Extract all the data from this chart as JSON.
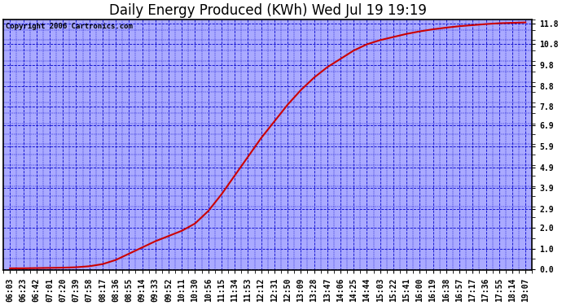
{
  "title": "Daily Energy Produced (KWh) Wed Jul 19 19:19",
  "copyright": "Copyright 2006 Cartronics.com",
  "fig_bg_color": "#ffffff",
  "plot_bg_color": "#aaaaff",
  "line_color": "#cc0000",
  "grid_color": "#0000cc",
  "border_color": "#000000",
  "text_color": "#000000",
  "yticks": [
    0.0,
    1.0,
    2.0,
    2.9,
    3.9,
    4.9,
    5.9,
    6.9,
    7.8,
    8.8,
    9.8,
    10.8,
    11.8
  ],
  "ylim": [
    -0.05,
    12.0
  ],
  "x_labels": [
    "06:03",
    "06:23",
    "06:42",
    "07:01",
    "07:20",
    "07:39",
    "07:58",
    "08:17",
    "08:36",
    "08:55",
    "09:14",
    "09:33",
    "09:52",
    "10:11",
    "10:30",
    "10:56",
    "11:15",
    "11:34",
    "11:53",
    "12:12",
    "12:31",
    "12:50",
    "13:09",
    "13:28",
    "13:47",
    "14:06",
    "14:25",
    "14:44",
    "15:03",
    "15:22",
    "15:41",
    "16:00",
    "16:19",
    "16:38",
    "16:57",
    "17:17",
    "17:36",
    "17:55",
    "18:14",
    "19:07"
  ],
  "y_data": [
    0.05,
    0.05,
    0.06,
    0.07,
    0.08,
    0.1,
    0.15,
    0.25,
    0.45,
    0.75,
    1.05,
    1.35,
    1.6,
    1.85,
    2.2,
    2.8,
    3.6,
    4.5,
    5.4,
    6.3,
    7.1,
    7.9,
    8.6,
    9.2,
    9.7,
    10.1,
    10.5,
    10.8,
    11.0,
    11.15,
    11.3,
    11.42,
    11.52,
    11.6,
    11.67,
    11.72,
    11.77,
    11.81,
    11.83,
    11.85
  ],
  "title_fontsize": 12,
  "tick_fontsize": 7,
  "copyright_fontsize": 6.5
}
